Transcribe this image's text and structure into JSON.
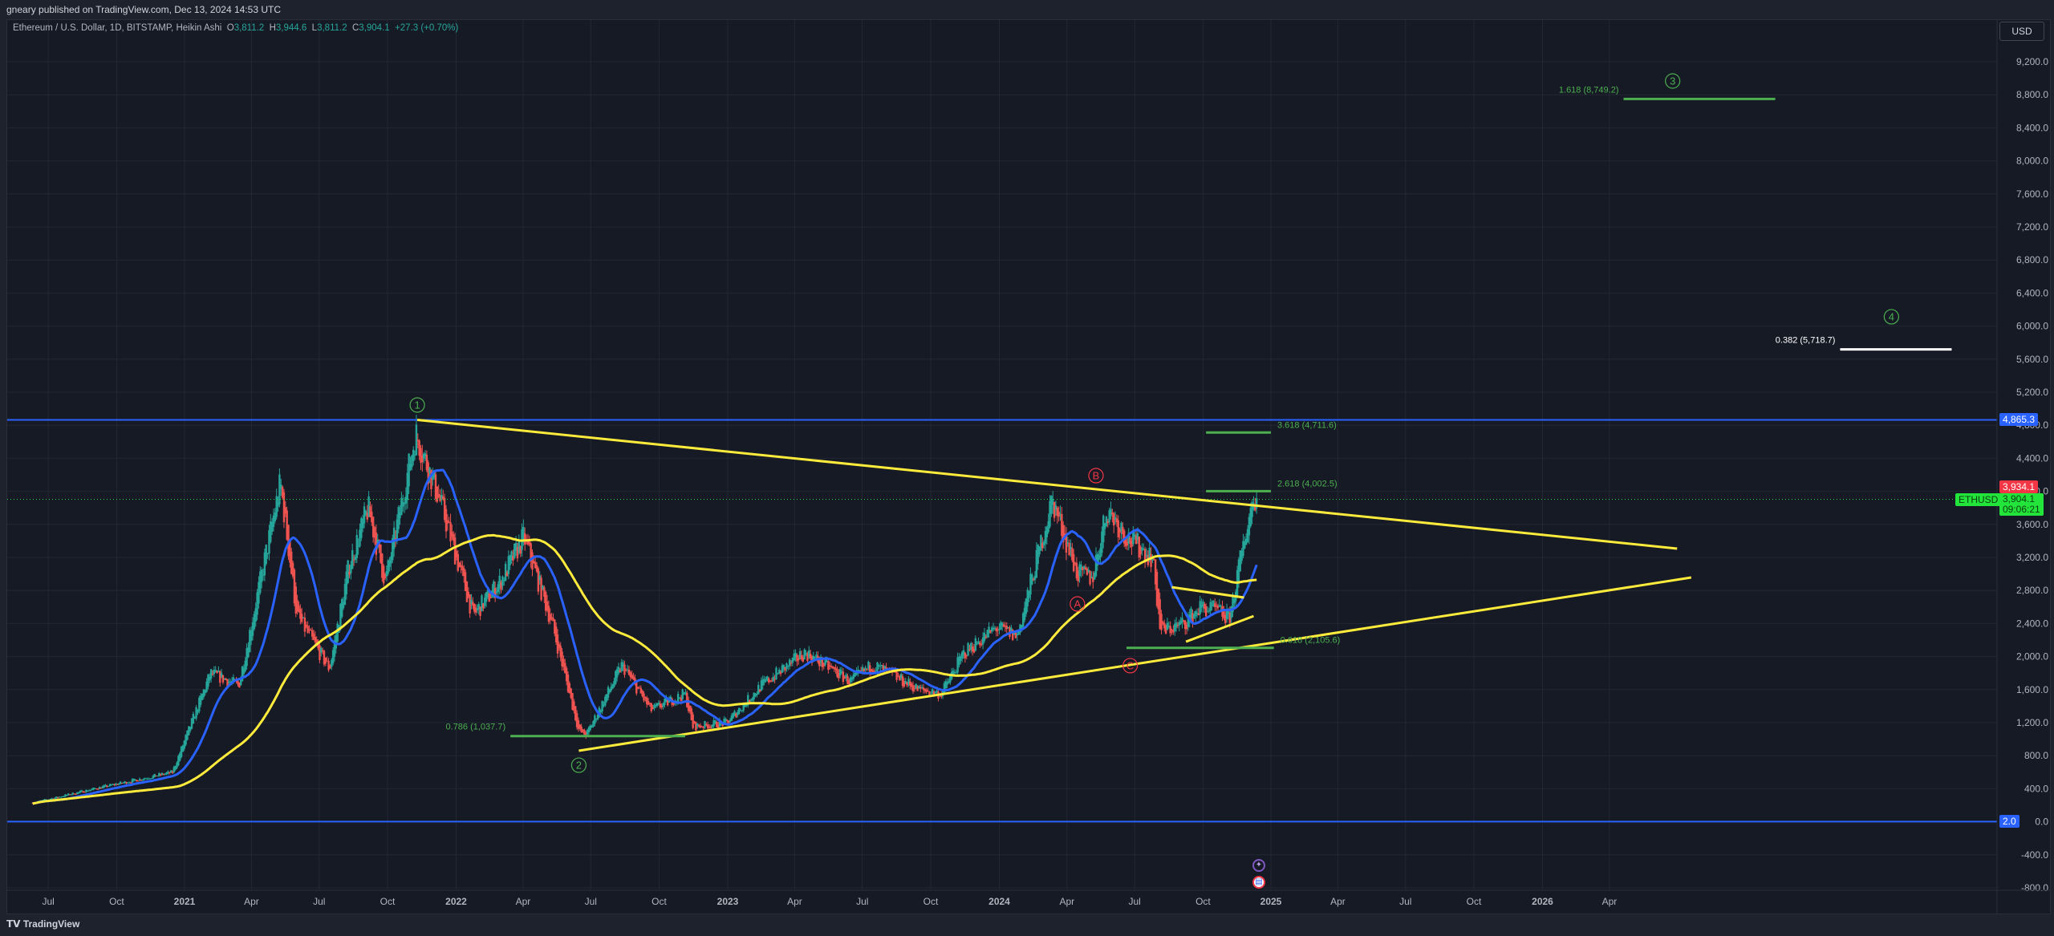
{
  "header": {
    "published": "gneary published on TradingView.com, Dec 13, 2024 14:53 UTC"
  },
  "legend": {
    "symbol": "Ethereum / U.S. Dollar, 1D, BITSTAMP, Heikin Ashi",
    "o_label": "O",
    "o": "3,811.2",
    "h_label": "H",
    "h": "3,944.6",
    "l_label": "L",
    "l": "3,811.2",
    "c_label": "C",
    "c": "3,904.1",
    "change": "+27.3 (+0.70%)"
  },
  "currency": "USD",
  "price_tags": {
    "blue_top": "4,865.3",
    "high": "3,934.1",
    "last": "3,904.1",
    "countdown": "09:06:21",
    "symbol": "ETHUSD",
    "blue_bottom": "2.0"
  },
  "footer": {
    "brand": "TradingView"
  },
  "colors": {
    "up": "#26a69a",
    "down": "#ef5350",
    "ma_fast": "#2962ff",
    "ma_slow": "#ffeb3b",
    "fib": "#4caf50",
    "hline": "#2962ff",
    "wave_green": "#4caf50",
    "wave_red": "#f23645",
    "last_tag": "#22e43a",
    "high_tag": "#f23645"
  },
  "chart_data": {
    "type": "candlestick",
    "ylim": [
      -800,
      9200
    ],
    "y_ticks": [
      "9,200.0",
      "8,800.0",
      "8,400.0",
      "8,000.0",
      "7,600.0",
      "7,200.0",
      "6,800.0",
      "6,400.0",
      "6,000.0",
      "5,600.0",
      "5,200.0",
      "4,800.0",
      "4,400.0",
      "4,000.0",
      "3,600.0",
      "3,200.0",
      "2,800.0",
      "2,400.0",
      "2,000.0",
      "1,600.0",
      "1,200.0",
      "800.0",
      "400.0",
      "0.0",
      "-400.0",
      "-800.0"
    ],
    "x_ticks": [
      [
        "2020-07-01",
        "Jul"
      ],
      [
        "2020-10-01",
        "Oct"
      ],
      [
        "2021-01-01",
        "2021"
      ],
      [
        "2021-04-01",
        "Apr"
      ],
      [
        "2021-07-01",
        "Jul"
      ],
      [
        "2021-10-01",
        "Oct"
      ],
      [
        "2022-01-01",
        "2022"
      ],
      [
        "2022-04-01",
        "Apr"
      ],
      [
        "2022-07-01",
        "Jul"
      ],
      [
        "2022-10-01",
        "Oct"
      ],
      [
        "2023-01-01",
        "2023"
      ],
      [
        "2023-04-01",
        "Apr"
      ],
      [
        "2023-07-01",
        "Jul"
      ],
      [
        "2023-10-01",
        "Oct"
      ],
      [
        "2024-01-01",
        "2024"
      ],
      [
        "2024-04-01",
        "Apr"
      ],
      [
        "2024-07-01",
        "Jul"
      ],
      [
        "2024-10-01",
        "Oct"
      ],
      [
        "2025-01-01",
        "2025"
      ],
      [
        "2025-04-01",
        "Apr"
      ],
      [
        "2025-07-01",
        "Jul"
      ],
      [
        "2025-10-01",
        "Oct"
      ],
      [
        "2026-01-01",
        "2026"
      ],
      [
        "2026-04-01",
        "Apr"
      ]
    ],
    "price_path": [
      [
        "2020-06-10",
        230
      ],
      [
        "2020-09-01",
        400
      ],
      [
        "2020-12-15",
        600
      ],
      [
        "2021-02-05",
        1800
      ],
      [
        "2021-03-15",
        1650
      ],
      [
        "2021-05-10",
        4100
      ],
      [
        "2021-06-01",
        2500
      ],
      [
        "2021-07-15",
        1850
      ],
      [
        "2021-08-10",
        3100
      ],
      [
        "2021-09-05",
        3800
      ],
      [
        "2021-09-28",
        2900
      ],
      [
        "2021-11-08",
        4700
      ],
      [
        "2021-12-10",
        3900
      ],
      [
        "2022-01-24",
        2500
      ],
      [
        "2022-03-01",
        2900
      ],
      [
        "2022-04-02",
        3450
      ],
      [
        "2022-05-10",
        2400
      ],
      [
        "2022-06-15",
        1100
      ],
      [
        "2022-06-25",
        1050
      ],
      [
        "2022-08-12",
        1900
      ],
      [
        "2022-09-20",
        1350
      ],
      [
        "2022-11-05",
        1550
      ],
      [
        "2022-11-15",
        1150
      ],
      [
        "2022-12-31",
        1200
      ],
      [
        "2023-02-15",
        1650
      ],
      [
        "2023-04-15",
        2050
      ],
      [
        "2023-06-15",
        1700
      ],
      [
        "2023-07-15",
        1900
      ],
      [
        "2023-09-15",
        1600
      ],
      [
        "2023-10-15",
        1550
      ],
      [
        "2023-11-15",
        2050
      ],
      [
        "2023-12-28",
        2350
      ],
      [
        "2024-01-25",
        2250
      ],
      [
        "2024-03-12",
        3900
      ],
      [
        "2024-04-15",
        3000
      ],
      [
        "2024-05-05",
        2950
      ],
      [
        "2024-05-25",
        3800
      ],
      [
        "2024-06-20",
        3450
      ],
      [
        "2024-07-25",
        3200
      ],
      [
        "2024-08-05",
        2300
      ],
      [
        "2024-09-05",
        2400
      ],
      [
        "2024-09-28",
        2600
      ],
      [
        "2024-10-20",
        2550
      ],
      [
        "2024-11-05",
        2450
      ],
      [
        "2024-11-25",
        3400
      ],
      [
        "2024-12-08",
        3950
      ],
      [
        "2024-12-13",
        3904
      ]
    ],
    "moving_averages": [
      "fast",
      "slow"
    ],
    "horizontal_lines": [
      4865.3,
      2.0
    ],
    "trendlines": [
      {
        "from": [
          "2021-11-10",
          4865
        ],
        "to": [
          "2026-07-01",
          3307
        ],
        "color": "yellow"
      },
      {
        "from": [
          "2022-06-15",
          860
        ],
        "to": [
          "2026-07-20",
          2957
        ],
        "color": "yellow"
      },
      {
        "from": [
          "2024-08-20",
          2840
        ],
        "to": [
          "2024-11-25",
          2715
        ],
        "color": "yellow"
      },
      {
        "from": [
          "2024-09-08",
          2180
        ],
        "to": [
          "2024-12-08",
          2490
        ],
        "color": "yellow"
      }
    ],
    "fib_levels": [
      {
        "label": "1.618 (8,749.2)",
        "value": 8749.2,
        "from": "2026-04-20",
        "to": "2026-11-10",
        "color": "green"
      },
      {
        "label": "0.382 (5,718.7)",
        "value": 5718.7,
        "from": "2027-02-05",
        "to": "2027-07-05",
        "color": "white"
      },
      {
        "label": "3.618 (4,711.6)",
        "value": 4711.6,
        "from": "2024-10-05",
        "to": "2025-01-01",
        "color": "green"
      },
      {
        "label": "2.618 (4,002.5)",
        "value": 4002.5,
        "from": "2024-10-05",
        "to": "2025-01-01",
        "color": "green"
      },
      {
        "label": "0.618 (2,105.6)",
        "value": 2105.6,
        "from": "2024-06-20",
        "to": "2025-01-05",
        "color": "green"
      },
      {
        "label": "0.786 (1,037.7)",
        "value": 1037.7,
        "from": "2022-03-15",
        "to": "2022-11-05",
        "color": "green"
      }
    ],
    "wave_labels": [
      {
        "text": "1",
        "date": "2021-11-10",
        "price": 5045,
        "color": "green"
      },
      {
        "text": "2",
        "date": "2022-06-15",
        "price": 685,
        "color": "green"
      },
      {
        "text": "3",
        "date": "2026-06-25",
        "price": 8967,
        "color": "green"
      },
      {
        "text": "4",
        "date": "2027-04-15",
        "price": 6113,
        "color": "green"
      },
      {
        "text": "A",
        "date": "2024-04-15",
        "price": 2637,
        "color": "red"
      },
      {
        "text": "B",
        "date": "2024-05-10",
        "price": 4190,
        "color": "red"
      },
      {
        "text": "C",
        "date": "2024-06-25",
        "price": 1890,
        "color": "red"
      }
    ]
  }
}
